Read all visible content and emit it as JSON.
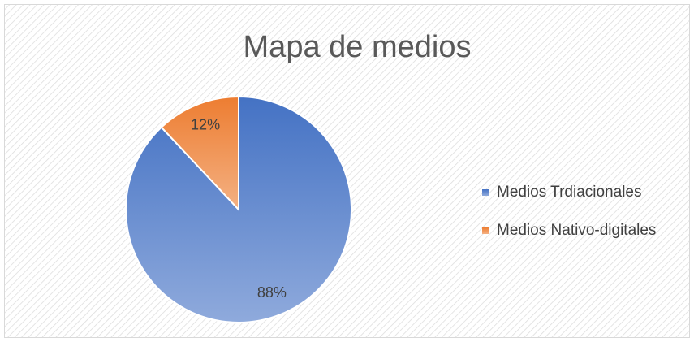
{
  "chart_data": {
    "type": "pie",
    "title": "Mapa de medios",
    "categories": [
      "Medios Trdiacionales",
      "Medios Nativo-digitales"
    ],
    "values": [
      88,
      12
    ],
    "value_labels": [
      "88%",
      "12%"
    ],
    "colors": [
      "#4472c4",
      "#ed7d31"
    ],
    "legend": "right"
  }
}
